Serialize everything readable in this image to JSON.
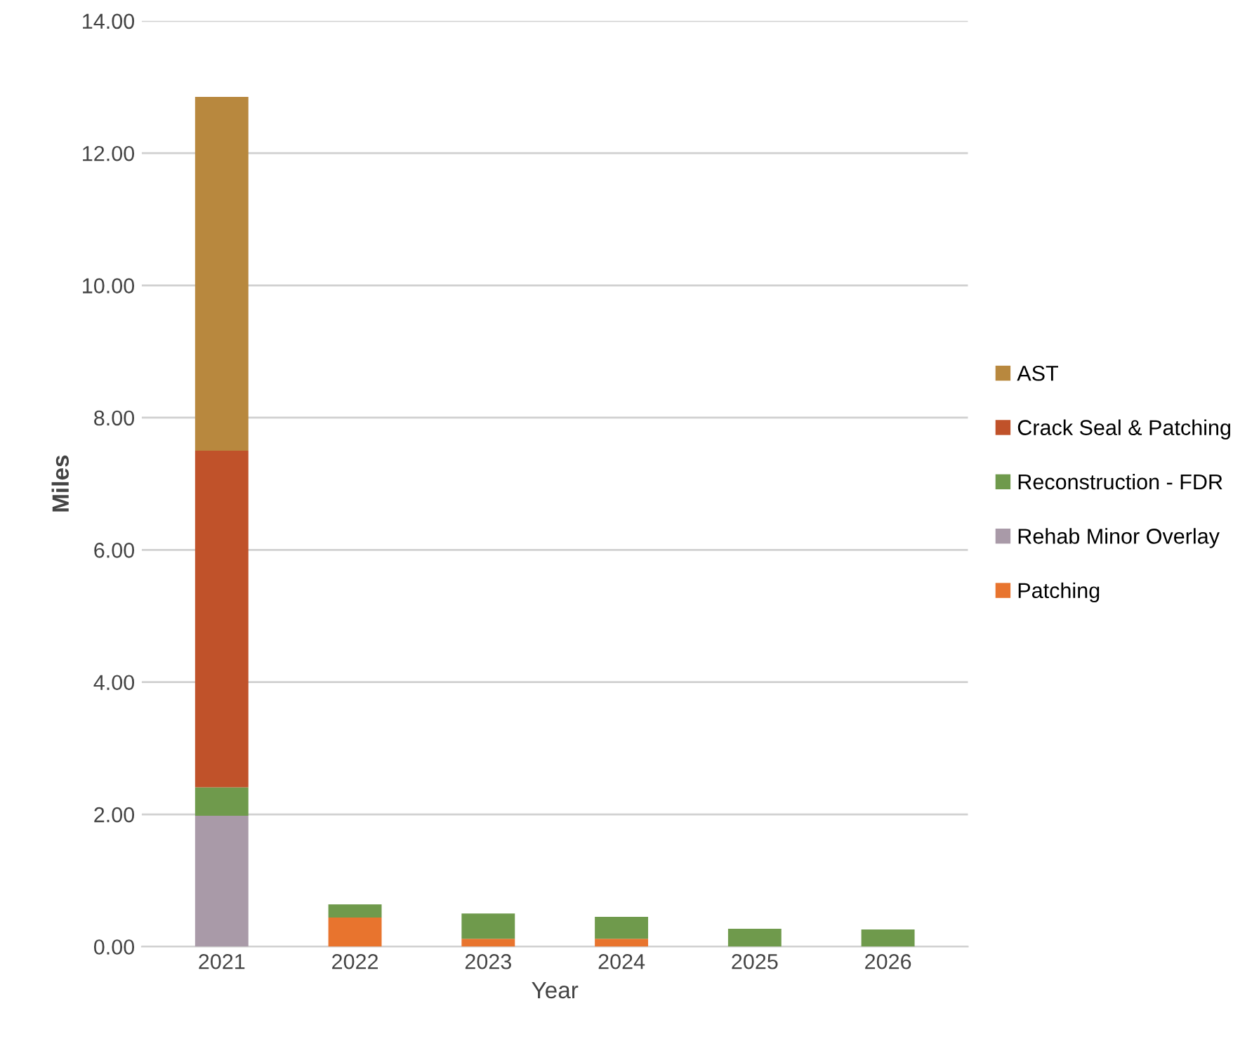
{
  "chart_data": {
    "type": "bar",
    "stacked": true,
    "xlabel": "Year",
    "ylabel": "Miles",
    "categories": [
      "2021",
      "2022",
      "2023",
      "2024",
      "2025",
      "2026"
    ],
    "series": [
      {
        "name": "Patching",
        "color": "#e8742e",
        "values": [
          0,
          0.44,
          0.12,
          0.12,
          0,
          0
        ]
      },
      {
        "name": "Rehab Minor Overlay",
        "color": "#a99aa8",
        "values": [
          1.98,
          0,
          0,
          0,
          0,
          0
        ]
      },
      {
        "name": "Reconstruction - FDR",
        "color": "#6f9a4c",
        "values": [
          0.43,
          0.2,
          0.38,
          0.33,
          0.27,
          0.26
        ]
      },
      {
        "name": "Crack Seal & Patching",
        "color": "#c0522a",
        "values": [
          5.09,
          0,
          0,
          0,
          0,
          0
        ]
      },
      {
        "name": "AST",
        "color": "#b8883e",
        "values": [
          5.35,
          0,
          0,
          0,
          0,
          0
        ]
      }
    ],
    "ylim": [
      0,
      14
    ],
    "yticks": [
      {
        "value": 0,
        "label": "0.00"
      },
      {
        "value": 2,
        "label": "2.00"
      },
      {
        "value": 4,
        "label": "4.00"
      },
      {
        "value": 6,
        "label": "6.00"
      },
      {
        "value": 8,
        "label": "8.00"
      },
      {
        "value": 10,
        "label": "10.00"
      },
      {
        "value": 12,
        "label": "12.00"
      },
      {
        "value": 14,
        "label": "14.00"
      }
    ],
    "grid": "y",
    "legend": "right"
  }
}
